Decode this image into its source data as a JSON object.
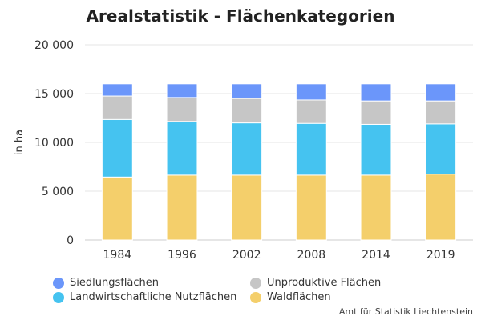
{
  "chart_data": {
    "type": "bar",
    "stacked": true,
    "title": "Arealstatistik - Flächenkategorien",
    "ylabel": "in ha",
    "xlabel": "",
    "ylim": [
      0,
      20000
    ],
    "yticks": [
      "0",
      "5 000",
      "10 000",
      "15 000",
      "20 000"
    ],
    "ytick_values": [
      0,
      5000,
      10000,
      15000,
      20000
    ],
    "categories": [
      "1984",
      "1996",
      "2002",
      "2008",
      "2014",
      "2019"
    ],
    "series": [
      {
        "name": "Waldflächen",
        "color": "#f4cf6b",
        "values": [
          6450,
          6650,
          6650,
          6650,
          6650,
          6750
        ]
      },
      {
        "name": "Landwirtschaftliche Nutzflächen",
        "color": "#45c3f0",
        "values": [
          5900,
          5500,
          5350,
          5300,
          5200,
          5150
        ]
      },
      {
        "name": "Unproduktive Flächen",
        "color": "#c6c6c6",
        "values": [
          2400,
          2450,
          2500,
          2400,
          2400,
          2350
        ]
      },
      {
        "name": "Siedlungsflächen",
        "color": "#6b96fa",
        "values": [
          1250,
          1400,
          1500,
          1650,
          1750,
          1750
        ]
      }
    ],
    "legend": [
      {
        "name": "Siedlungsflächen",
        "color": "#6b96fa"
      },
      {
        "name": "Unproduktive Flächen",
        "color": "#c6c6c6"
      },
      {
        "name": "Landwirtschaftliche Nutzflächen",
        "color": "#45c3f0"
      },
      {
        "name": "Waldflächen",
        "color": "#f4cf6b"
      }
    ],
    "legend_position": "bottom-left",
    "grid": true
  },
  "credits": "Amt für Statistik Liechtenstein"
}
